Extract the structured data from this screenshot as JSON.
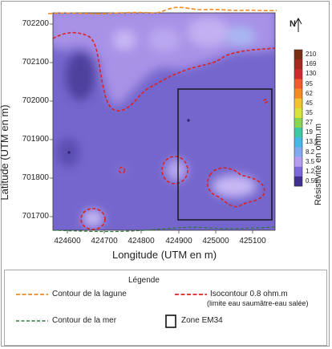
{
  "chart_data": {
    "type": "heatmap",
    "xlabel": "Longitude (UTM en m)",
    "ylabel": "Latitude (UTM en m)",
    "xlim": [
      424540,
      425140
    ],
    "ylim": [
      701665,
      702230
    ],
    "x_ticks": [
      "424600",
      "424700",
      "424800",
      "424900",
      "425000",
      "425100"
    ],
    "y_ticks": [
      "702200",
      "702100",
      "702000",
      "701900",
      "701800",
      "701700"
    ],
    "colorbar_title": "Résistivité en ohm.m",
    "colorbar_ticks": [
      "210",
      "169",
      "130",
      "95",
      "62",
      "45",
      "35",
      "27",
      "19",
      "13.5",
      "8.2",
      "3.5",
      "1.2",
      "0.55"
    ],
    "colorbar_colors": [
      "#7a2f12",
      "#a32a1c",
      "#cf2a2a",
      "#ef5a2e",
      "#f38a22",
      "#f3c22e",
      "#d7e43a",
      "#86d653",
      "#3ec8a3",
      "#46b7e7",
      "#7faaf0",
      "#b79cf2",
      "#7e69d8",
      "#3f2f8f"
    ],
    "north_label": "N"
  },
  "legend": {
    "title": "Légende",
    "lagoon": "Contour de la lagune",
    "isocontour": "Isocontour 0.8 ohm.m",
    "isocontour_note": "(limite eau saumâtre-eau salée)",
    "sea": "Contour de la mer",
    "zone": "Zone EM34"
  },
  "colors": {
    "background": "#7466cc",
    "lagoon_line": "#f08a24",
    "isocontour_line": "#dd2020",
    "sea_line": "#2f7a3a"
  }
}
